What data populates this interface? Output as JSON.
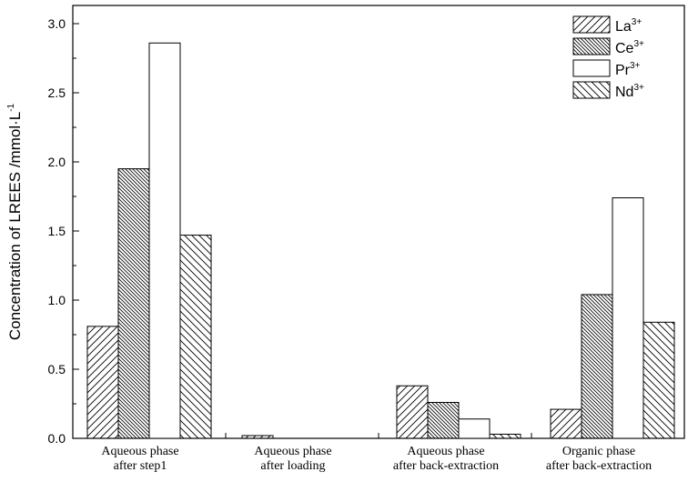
{
  "chart_data": {
    "type": "bar",
    "categories": [
      [
        "Aqueous phase",
        "after step1"
      ],
      [
        "Aqueous phase",
        "after loading"
      ],
      [
        "Aqueous phase",
        "after back-extraction"
      ],
      [
        "Organic phase",
        "after back-extraction"
      ]
    ],
    "series": [
      {
        "name": "La",
        "charge": "3+",
        "pattern": "hatch-forward",
        "values": [
          0.81,
          0.02,
          0.38,
          0.21
        ]
      },
      {
        "name": "Ce",
        "charge": "3+",
        "pattern": "hatch-backward-dense",
        "values": [
          1.95,
          0.0,
          0.26,
          1.04
        ]
      },
      {
        "name": "Pr",
        "charge": "3+",
        "pattern": "empty",
        "values": [
          2.86,
          0.0,
          0.14,
          1.74
        ]
      },
      {
        "name": "Nd",
        "charge": "3+",
        "pattern": "hatch-backward",
        "values": [
          1.47,
          0.0,
          0.03,
          0.84
        ]
      }
    ],
    "ylabel": "Concentration of LREES /mmol·L",
    "ylabel_sup": "-1",
    "ylim": [
      0,
      3.0
    ],
    "yticks": [
      "0.0",
      "0.5",
      "1.0",
      "1.5",
      "2.0",
      "2.5",
      "3.0"
    ],
    "legend_position": "top-right",
    "grid": false
  }
}
